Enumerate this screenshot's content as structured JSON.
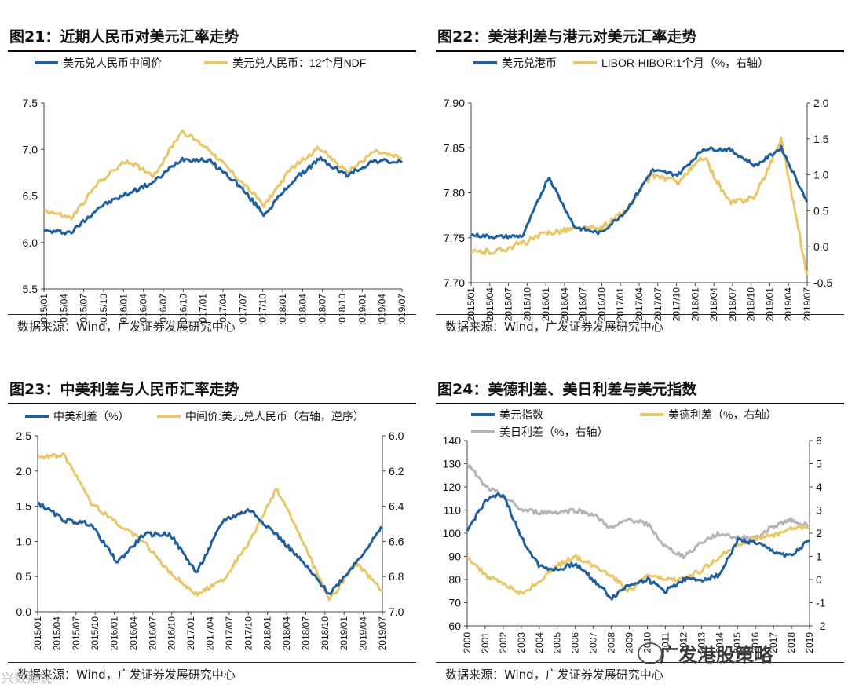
{
  "colors": {
    "blue": "#1f5f9e",
    "gold": "#e8c76a",
    "gray": "#b5b5b5"
  },
  "source": "数据来源：Wind，广发证券发展研究中心",
  "watermark": "广发港股策略",
  "watermark2": "兴数据说",
  "charts": [
    {
      "id": "c21",
      "title": "图21：近期人民币对美元汇率走势",
      "legend": [
        "美元兑人民币中间价",
        "美元兑人民币：12个月NDF"
      ],
      "yticks": [
        "7.5",
        "7.0",
        "6.5",
        "6.0",
        "5.5"
      ],
      "y2ticks": [],
      "xticks": [
        "2015/01",
        "2015/04",
        "2015/07",
        "2015/10",
        "2016/01",
        "2016/04",
        "2016/07",
        "2016/10",
        "2017/01",
        "2017/04",
        "2017/07",
        "2017/10",
        "2018/01",
        "2018/04",
        "2018/07",
        "2018/10",
        "2019/01",
        "2019/04",
        "2019/07"
      ],
      "chart_data": {
        "type": "line",
        "ylim": [
          5.5,
          7.5
        ],
        "x": [
          "2015/01",
          "2015/07",
          "2015/08",
          "2016/01",
          "2016/07",
          "2016/12",
          "2017/04",
          "2017/09",
          "2018/03",
          "2018/07",
          "2018/10",
          "2019/02",
          "2019/05",
          "2019/07"
        ],
        "series": [
          {
            "name": "美元兑人民币中间价",
            "axis": "left",
            "values": [
              6.12,
              6.11,
              6.38,
              6.52,
              6.65,
              6.9,
              6.88,
              6.64,
              6.3,
              6.65,
              6.9,
              6.72,
              6.88,
              6.86
            ]
          },
          {
            "name": "美元兑人民币：12个月NDF",
            "axis": "left",
            "values": [
              6.35,
              6.26,
              6.65,
              6.88,
              6.72,
              7.2,
              7.0,
              6.7,
              6.4,
              6.8,
              7.02,
              6.75,
              6.98,
              6.9
            ]
          }
        ]
      }
    },
    {
      "id": "c22",
      "title": "图22：美港利差与港元对美元汇率走势",
      "legend": [
        "美元兑港币",
        "LIBOR-HIBOR:1个月（%，右轴）"
      ],
      "yticks": [
        "7.90",
        "7.85",
        "7.80",
        "7.75",
        "7.70"
      ],
      "y2ticks": [
        "2.0",
        "1.5",
        "1.0",
        "0.5",
        "0.0",
        "-0.5"
      ],
      "xticks": [
        "2015/01",
        "2015/04",
        "2015/07",
        "2015/10",
        "2016/01",
        "2016/04",
        "2016/07",
        "2016/10",
        "2017/01",
        "2017/04",
        "2017/07",
        "2017/10",
        "2018/01",
        "2018/04",
        "2018/07",
        "2018/10",
        "2019/01",
        "2019/04",
        "2019/07"
      ],
      "chart_data": {
        "type": "line",
        "ylim": [
          7.7,
          7.9
        ],
        "y2lim": [
          -0.5,
          2.0
        ],
        "x": [
          "2015/01",
          "2015/10",
          "2016/01",
          "2016/02",
          "2016/05",
          "2016/12",
          "2017/06",
          "2017/10",
          "2018/01",
          "2018/04",
          "2018/09",
          "2018/12",
          "2019/04",
          "2019/07"
        ],
        "series": [
          {
            "name": "美元兑港币",
            "axis": "left",
            "values": [
              7.753,
              7.751,
              7.752,
              7.818,
              7.762,
              7.755,
              7.78,
              7.825,
              7.82,
              7.849,
              7.848,
              7.83,
              7.85,
              7.79
            ]
          },
          {
            "name": "LIBOR-HIBOR:1个月（%，右轴）",
            "axis": "right",
            "values": [
              -0.08,
              -0.06,
              0.05,
              0.2,
              0.25,
              0.25,
              0.5,
              1.0,
              0.9,
              1.25,
              0.6,
              0.7,
              1.5,
              -0.4
            ]
          }
        ]
      }
    },
    {
      "id": "c23",
      "title": "图23：中美利差与人民币汇率走势",
      "legend": [
        "中美利差（%）",
        "中间价:美元兑人民币（右轴，逆序）"
      ],
      "yticks": [
        "2.5",
        "2.0",
        "1.5",
        "1.0",
        "0.5",
        "0.0"
      ],
      "y2ticks": [
        "6.0",
        "6.2",
        "6.4",
        "6.6",
        "6.8",
        "7.0"
      ],
      "xticks": [
        "2015/01",
        "2015/04",
        "2015/07",
        "2015/10",
        "2016/01",
        "2016/04",
        "2016/07",
        "2016/10",
        "2017/01",
        "2017/04",
        "2017/07",
        "2017/10",
        "2018/01",
        "2018/04",
        "2018/07",
        "2018/10",
        "2019/01",
        "2019/04",
        "2019/07"
      ],
      "chart_data": {
        "type": "line",
        "ylim": [
          0,
          2.5
        ],
        "y2lim": [
          6.0,
          7.0
        ],
        "y2_inverted": true,
        "x": [
          "2015/01",
          "2015/06",
          "2015/10",
          "2016/02",
          "2016/06",
          "2016/10",
          "2017/01",
          "2017/06",
          "2017/11",
          "2018/03",
          "2018/07",
          "2018/11",
          "2019/04",
          "2019/07"
        ],
        "series": [
          {
            "name": "中美利差（%）",
            "axis": "left",
            "values": [
              1.55,
              1.3,
              1.25,
              0.7,
              1.1,
              1.1,
              0.55,
              1.3,
              1.45,
              1.1,
              0.7,
              0.25,
              0.7,
              1.2
            ]
          },
          {
            "name": "中间价:美元兑人民币（右轴，逆序）",
            "axis": "right",
            "values": [
              6.12,
              6.11,
              6.38,
              6.5,
              6.6,
              6.78,
              6.9,
              6.82,
              6.6,
              6.3,
              6.6,
              6.94,
              6.72,
              6.88
            ]
          }
        ]
      }
    },
    {
      "id": "c24",
      "title": "图24：美德利差、美日利差与美元指数",
      "legend": [
        "美元指数",
        "美德利差（%，右轴）",
        "美日利差（%，右轴）"
      ],
      "yticks": [
        "140",
        "130",
        "120",
        "110",
        "100",
        "90",
        "80",
        "70",
        "60"
      ],
      "y2ticks": [
        "6",
        "5",
        "4",
        "3",
        "2",
        "1",
        "0",
        "-1",
        "-2"
      ],
      "xticks": [
        "2000",
        "2001",
        "2002",
        "2003",
        "2004",
        "2005",
        "2006",
        "2007",
        "2008",
        "2009",
        "2010",
        "2011",
        "2012",
        "2013",
        "2014",
        "2015",
        "2016",
        "2017",
        "2018",
        "2019"
      ],
      "chart_data": {
        "type": "line",
        "ylim": [
          60,
          140
        ],
        "y2lim": [
          -2,
          6
        ],
        "x": [
          "2000",
          "2001",
          "2002",
          "2003",
          "2004",
          "2005",
          "2006",
          "2007",
          "2008",
          "2009",
          "2010",
          "2011",
          "2012",
          "2013",
          "2014",
          "2015",
          "2016",
          "2017",
          "2018",
          "2019"
        ],
        "series": [
          {
            "name": "美元指数",
            "axis": "left",
            "values": [
              101,
              114,
              117,
              98,
              86,
              84,
              87,
              80,
              72,
              78,
              80,
              75,
              80,
              80,
              82,
              97,
              96,
              92,
              90,
              97
            ]
          },
          {
            "name": "美德利差（%，右轴）",
            "axis": "right",
            "values": [
              1.0,
              0.2,
              -0.2,
              -0.6,
              -0.1,
              0.6,
              1.0,
              0.6,
              0.2,
              -0.5,
              0.2,
              0.0,
              0.0,
              0.4,
              1.0,
              1.5,
              1.8,
              1.9,
              2.2,
              2.3
            ]
          },
          {
            "name": "美日利差（%，右轴）",
            "axis": "right",
            "values": [
              5.0,
              4.0,
              3.6,
              3.0,
              2.9,
              2.9,
              3.0,
              2.8,
              2.2,
              2.6,
              2.4,
              1.4,
              1.0,
              1.6,
              2.0,
              1.8,
              1.8,
              2.3,
              2.6,
              2.3
            ]
          }
        ]
      }
    }
  ]
}
